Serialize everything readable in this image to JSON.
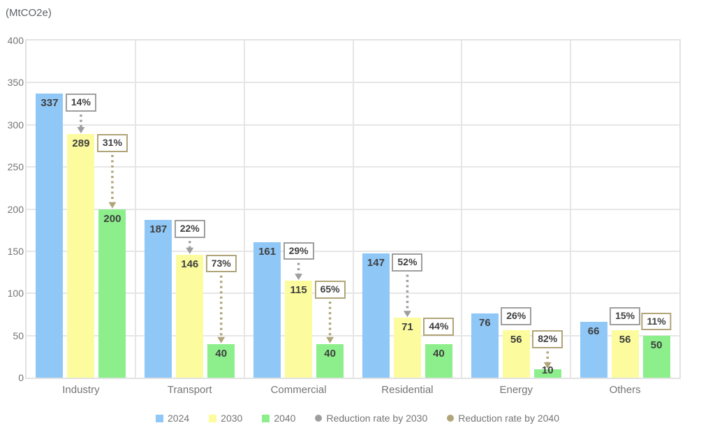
{
  "chart_data": {
    "type": "bar",
    "title": "",
    "unit_label": "(MtCO2e)",
    "xlabel": "",
    "ylabel": "MtCO2e",
    "ylim": [
      0,
      400
    ],
    "yticks": [
      0,
      50,
      100,
      150,
      200,
      250,
      300,
      350,
      400
    ],
    "grid": true,
    "legend_position": "bottom",
    "categories": [
      "Industry",
      "Transport",
      "Commercial",
      "Residential",
      "Energy",
      "Others"
    ],
    "series": [
      {
        "name": "2024",
        "color": "#8fc7f7",
        "values": [
          337,
          187,
          161,
          147,
          76,
          66
        ]
      },
      {
        "name": "2030",
        "color": "#fcfc9e",
        "values": [
          289,
          146,
          115,
          71,
          56,
          56
        ]
      },
      {
        "name": "2040",
        "color": "#8cef8c",
        "values": [
          200,
          40,
          40,
          40,
          10,
          50
        ]
      }
    ],
    "annotations": [
      {
        "name": "Reduction rate by 2030",
        "color": "#9e9e9e",
        "target_series": "2030",
        "from_series": "2024",
        "values": [
          "14%",
          "22%",
          "29%",
          "52%",
          "26%",
          "15%"
        ]
      },
      {
        "name": "Reduction rate by 2040",
        "color": "#b0a478",
        "target_series": "2040",
        "from_series": "2030",
        "values": [
          "31%",
          "73%",
          "65%",
          "44%",
          "82%",
          "11%"
        ]
      }
    ]
  }
}
